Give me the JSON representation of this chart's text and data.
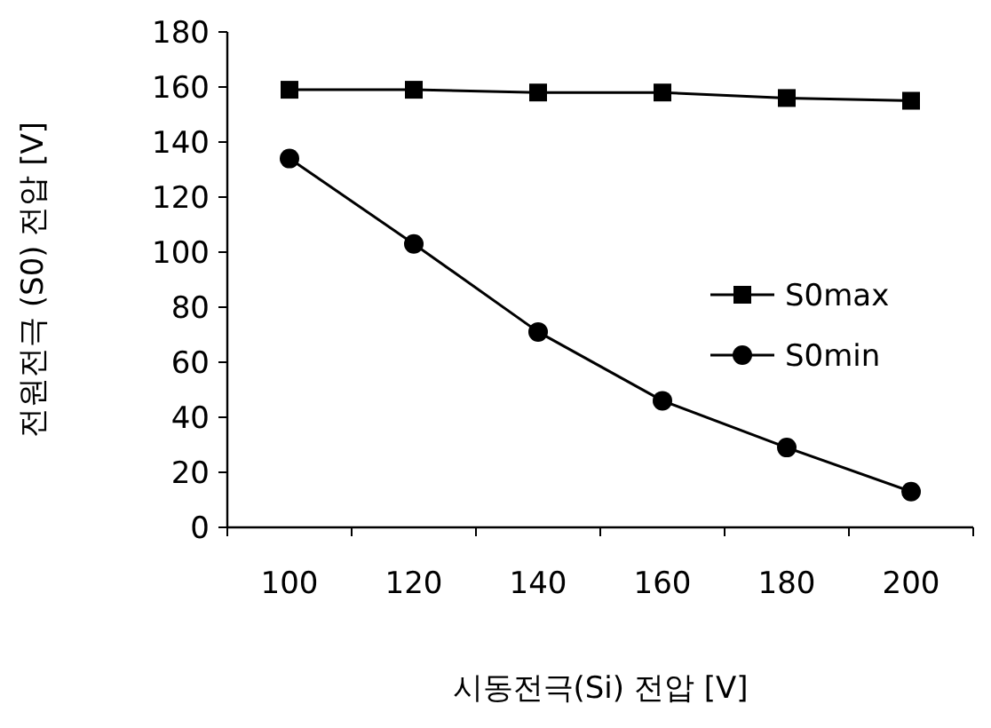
{
  "chart_data": {
    "type": "line",
    "xlabel": "시동전극(Si) 전압 [V]",
    "ylabel": "전원전극 (S0) 전압 [V]",
    "categories": [
      "100",
      "120",
      "140",
      "160",
      "180",
      "200"
    ],
    "series": [
      {
        "name": "S0max",
        "color": "#000000",
        "marker": "square",
        "values": [
          159,
          159,
          158,
          158,
          156,
          155
        ]
      },
      {
        "name": "S0min",
        "color": "#000000",
        "marker": "circle",
        "values": [
          134,
          103,
          71,
          46,
          29,
          13
        ]
      }
    ],
    "ylim": [
      0,
      180
    ],
    "yticks": [
      0,
      20,
      40,
      60,
      80,
      100,
      120,
      140,
      160,
      180
    ],
    "grid": false,
    "legend": "right",
    "line_style": "solid"
  }
}
